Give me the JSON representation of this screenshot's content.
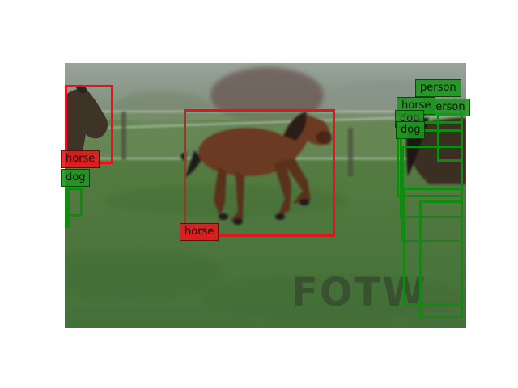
{
  "image": {
    "description_colors": {
      "grass": "#4f7a3a",
      "background": "#8a9a84",
      "pony": "#6b3a22",
      "red_box": "#e8131a",
      "green_box": "#118a11"
    },
    "watermark_text": "FOTW"
  },
  "detections": {
    "red": [
      {
        "label": "horse"
      },
      {
        "label": "horse"
      }
    ],
    "green_labels": [
      {
        "label": "dog"
      },
      {
        "label": "person"
      },
      {
        "label": "person"
      },
      {
        "label": "horse"
      },
      {
        "label": "dog"
      },
      {
        "label": "dog"
      }
    ]
  }
}
